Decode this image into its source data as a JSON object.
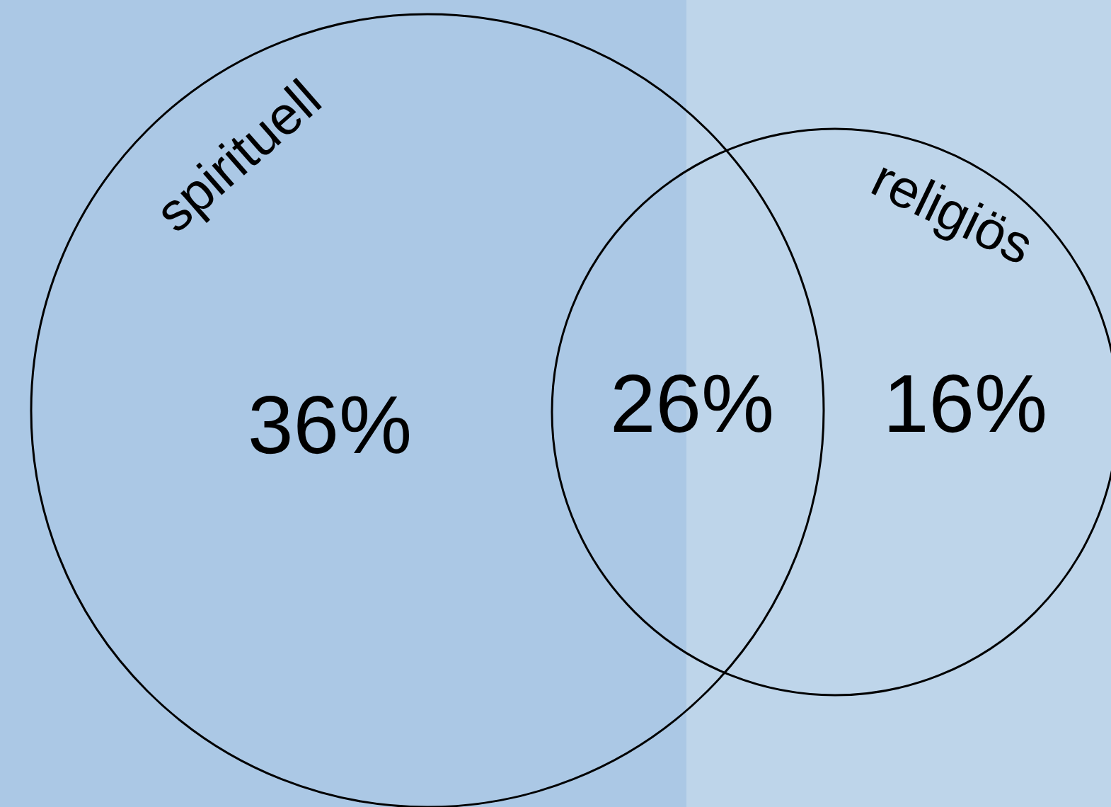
{
  "chart_data": {
    "type": "other",
    "categories": [
      "spirituell",
      null,
      "religiös"
    ],
    "values": [
      36,
      26,
      16
    ],
    "value_labels": [
      "36%",
      "26%",
      "16%"
    ]
  }
}
